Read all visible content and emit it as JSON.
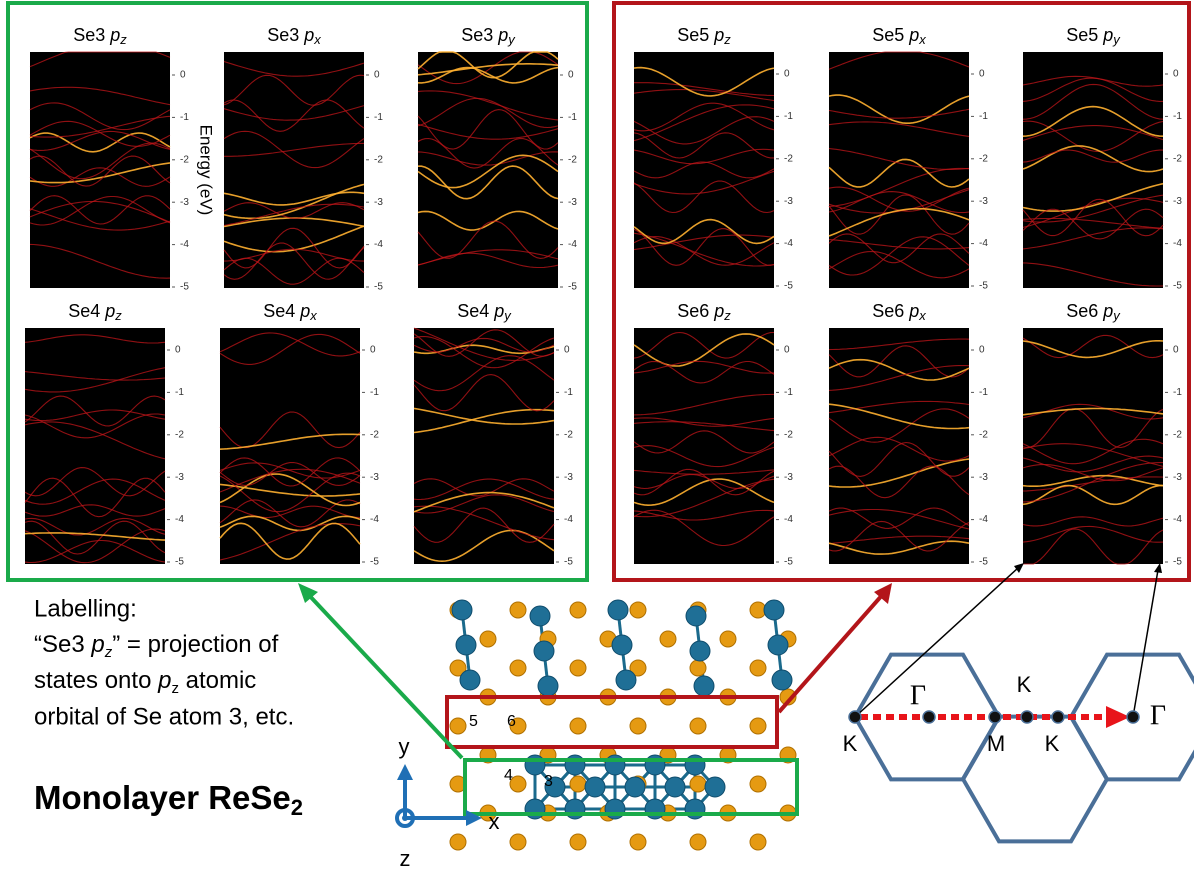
{
  "panels": [
    {
      "atom": "Se3",
      "orbital": "p",
      "subscript": "z"
    },
    {
      "atom": "Se3",
      "orbital": "p",
      "subscript": "x"
    },
    {
      "atom": "Se3",
      "orbital": "p",
      "subscript": "y"
    },
    {
      "atom": "Se4",
      "orbital": "p",
      "subscript": "z"
    },
    {
      "atom": "Se4",
      "orbital": "p",
      "subscript": "x"
    },
    {
      "atom": "Se4",
      "orbital": "p",
      "subscript": "y"
    },
    {
      "atom": "Se5",
      "orbital": "p",
      "subscript": "z"
    },
    {
      "atom": "Se5",
      "orbital": "p",
      "subscript": "x"
    },
    {
      "atom": "Se5",
      "orbital": "p",
      "subscript": "y"
    },
    {
      "atom": "Se6",
      "orbital": "p",
      "subscript": "z"
    },
    {
      "atom": "Se6",
      "orbital": "p",
      "subscript": "x"
    },
    {
      "atom": "Se6",
      "orbital": "p",
      "subscript": "y"
    }
  ],
  "energy_axis": {
    "label": "Energy (eV)",
    "ticks": [
      0,
      -1,
      -2,
      -3,
      -4,
      -5
    ]
  },
  "labelling": {
    "heading": "Labelling:",
    "line1_start": "“Se3 ",
    "line1_orbital": "p",
    "line1_sub": "z",
    "line1_end": "” = projection of",
    "line2_start": "states onto ",
    "line2_orbital": "p",
    "line2_sub": "z",
    "line2_end": " atomic",
    "line3": "orbital of Se atom 3, etc."
  },
  "title": {
    "main": "Monolayer ReSe",
    "sub": "2"
  },
  "atom_labels": [
    "5",
    "6",
    "4",
    "3"
  ],
  "axes": {
    "y": "y",
    "x": "x",
    "z": "z"
  },
  "brillouin_zone": {
    "points": [
      "K",
      "Γ",
      "M",
      "K",
      "K",
      "Γ"
    ]
  }
}
